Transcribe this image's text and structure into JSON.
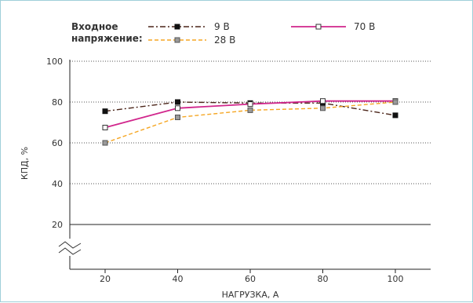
{
  "chart_data": {
    "type": "line",
    "legend_title_line1": "Входное",
    "legend_title_line2": "напряжение:",
    "xlabel": "НАГРУЗКА, А",
    "ylabel": "КПД, %",
    "categories": [
      20,
      40,
      60,
      80,
      100
    ],
    "x_tick_labels": [
      "20",
      "40",
      "60",
      "80",
      "100"
    ],
    "y_tick_labels": [
      "20",
      "40",
      "60",
      "80",
      "100"
    ],
    "ylim": [
      20,
      100
    ],
    "y_axis_break": true,
    "grid": "horizontal dotted",
    "legend_position": "top",
    "series": [
      {
        "name": "9 В",
        "values": [
          75.5,
          80,
          79.5,
          79.5,
          73.5
        ],
        "color": "#4a2418",
        "line_style": "dash-dot",
        "marker": "filled-square"
      },
      {
        "name": "70 В",
        "values": [
          67.5,
          77,
          79,
          80.5,
          80.5
        ],
        "color": "#d1268c",
        "line_style": "solid",
        "marker": "open-square"
      },
      {
        "name": "28 В",
        "values": [
          60,
          72.5,
          76,
          77,
          80
        ],
        "color": "#f5a623",
        "line_style": "dashed",
        "marker": "gray-square"
      }
    ]
  }
}
